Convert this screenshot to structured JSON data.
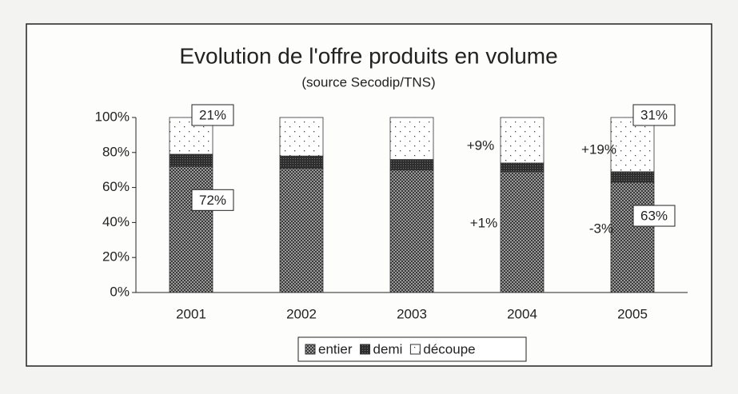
{
  "chart_data": {
    "type": "stacked_bar",
    "title": "Evolution de  l'offre produits en volume",
    "subtitle": "(source Secodip/TNS)",
    "categories": [
      "2001",
      "2002",
      "2003",
      "2004",
      "2005"
    ],
    "series": [
      {
        "name": "entier",
        "color": "#6e6e6e",
        "values": [
          72,
          71,
          70,
          69,
          63
        ],
        "value_labels": [
          "72%",
          null,
          null,
          null,
          "63%"
        ]
      },
      {
        "name": "demi",
        "color": "#333333",
        "values": [
          7,
          7,
          6,
          5,
          6
        ]
      },
      {
        "name": "découpe",
        "color": "#ffffff",
        "values": [
          21,
          22,
          24,
          26,
          31
        ],
        "value_labels": [
          "21%",
          null,
          null,
          null,
          "31%"
        ]
      }
    ],
    "ylim": [
      0,
      100
    ],
    "yticks": [
      {
        "value": 0,
        "label": "0%"
      },
      {
        "value": 20,
        "label": "20%"
      },
      {
        "value": 40,
        "label": "40%"
      },
      {
        "value": 60,
        "label": "60%"
      },
      {
        "value": 80,
        "label": "80%"
      },
      {
        "value": 100,
        "label": "100%"
      }
    ],
    "annotations": [
      "+9%",
      "+19%",
      "+1%",
      "-3%"
    ],
    "legend": "bottom"
  }
}
